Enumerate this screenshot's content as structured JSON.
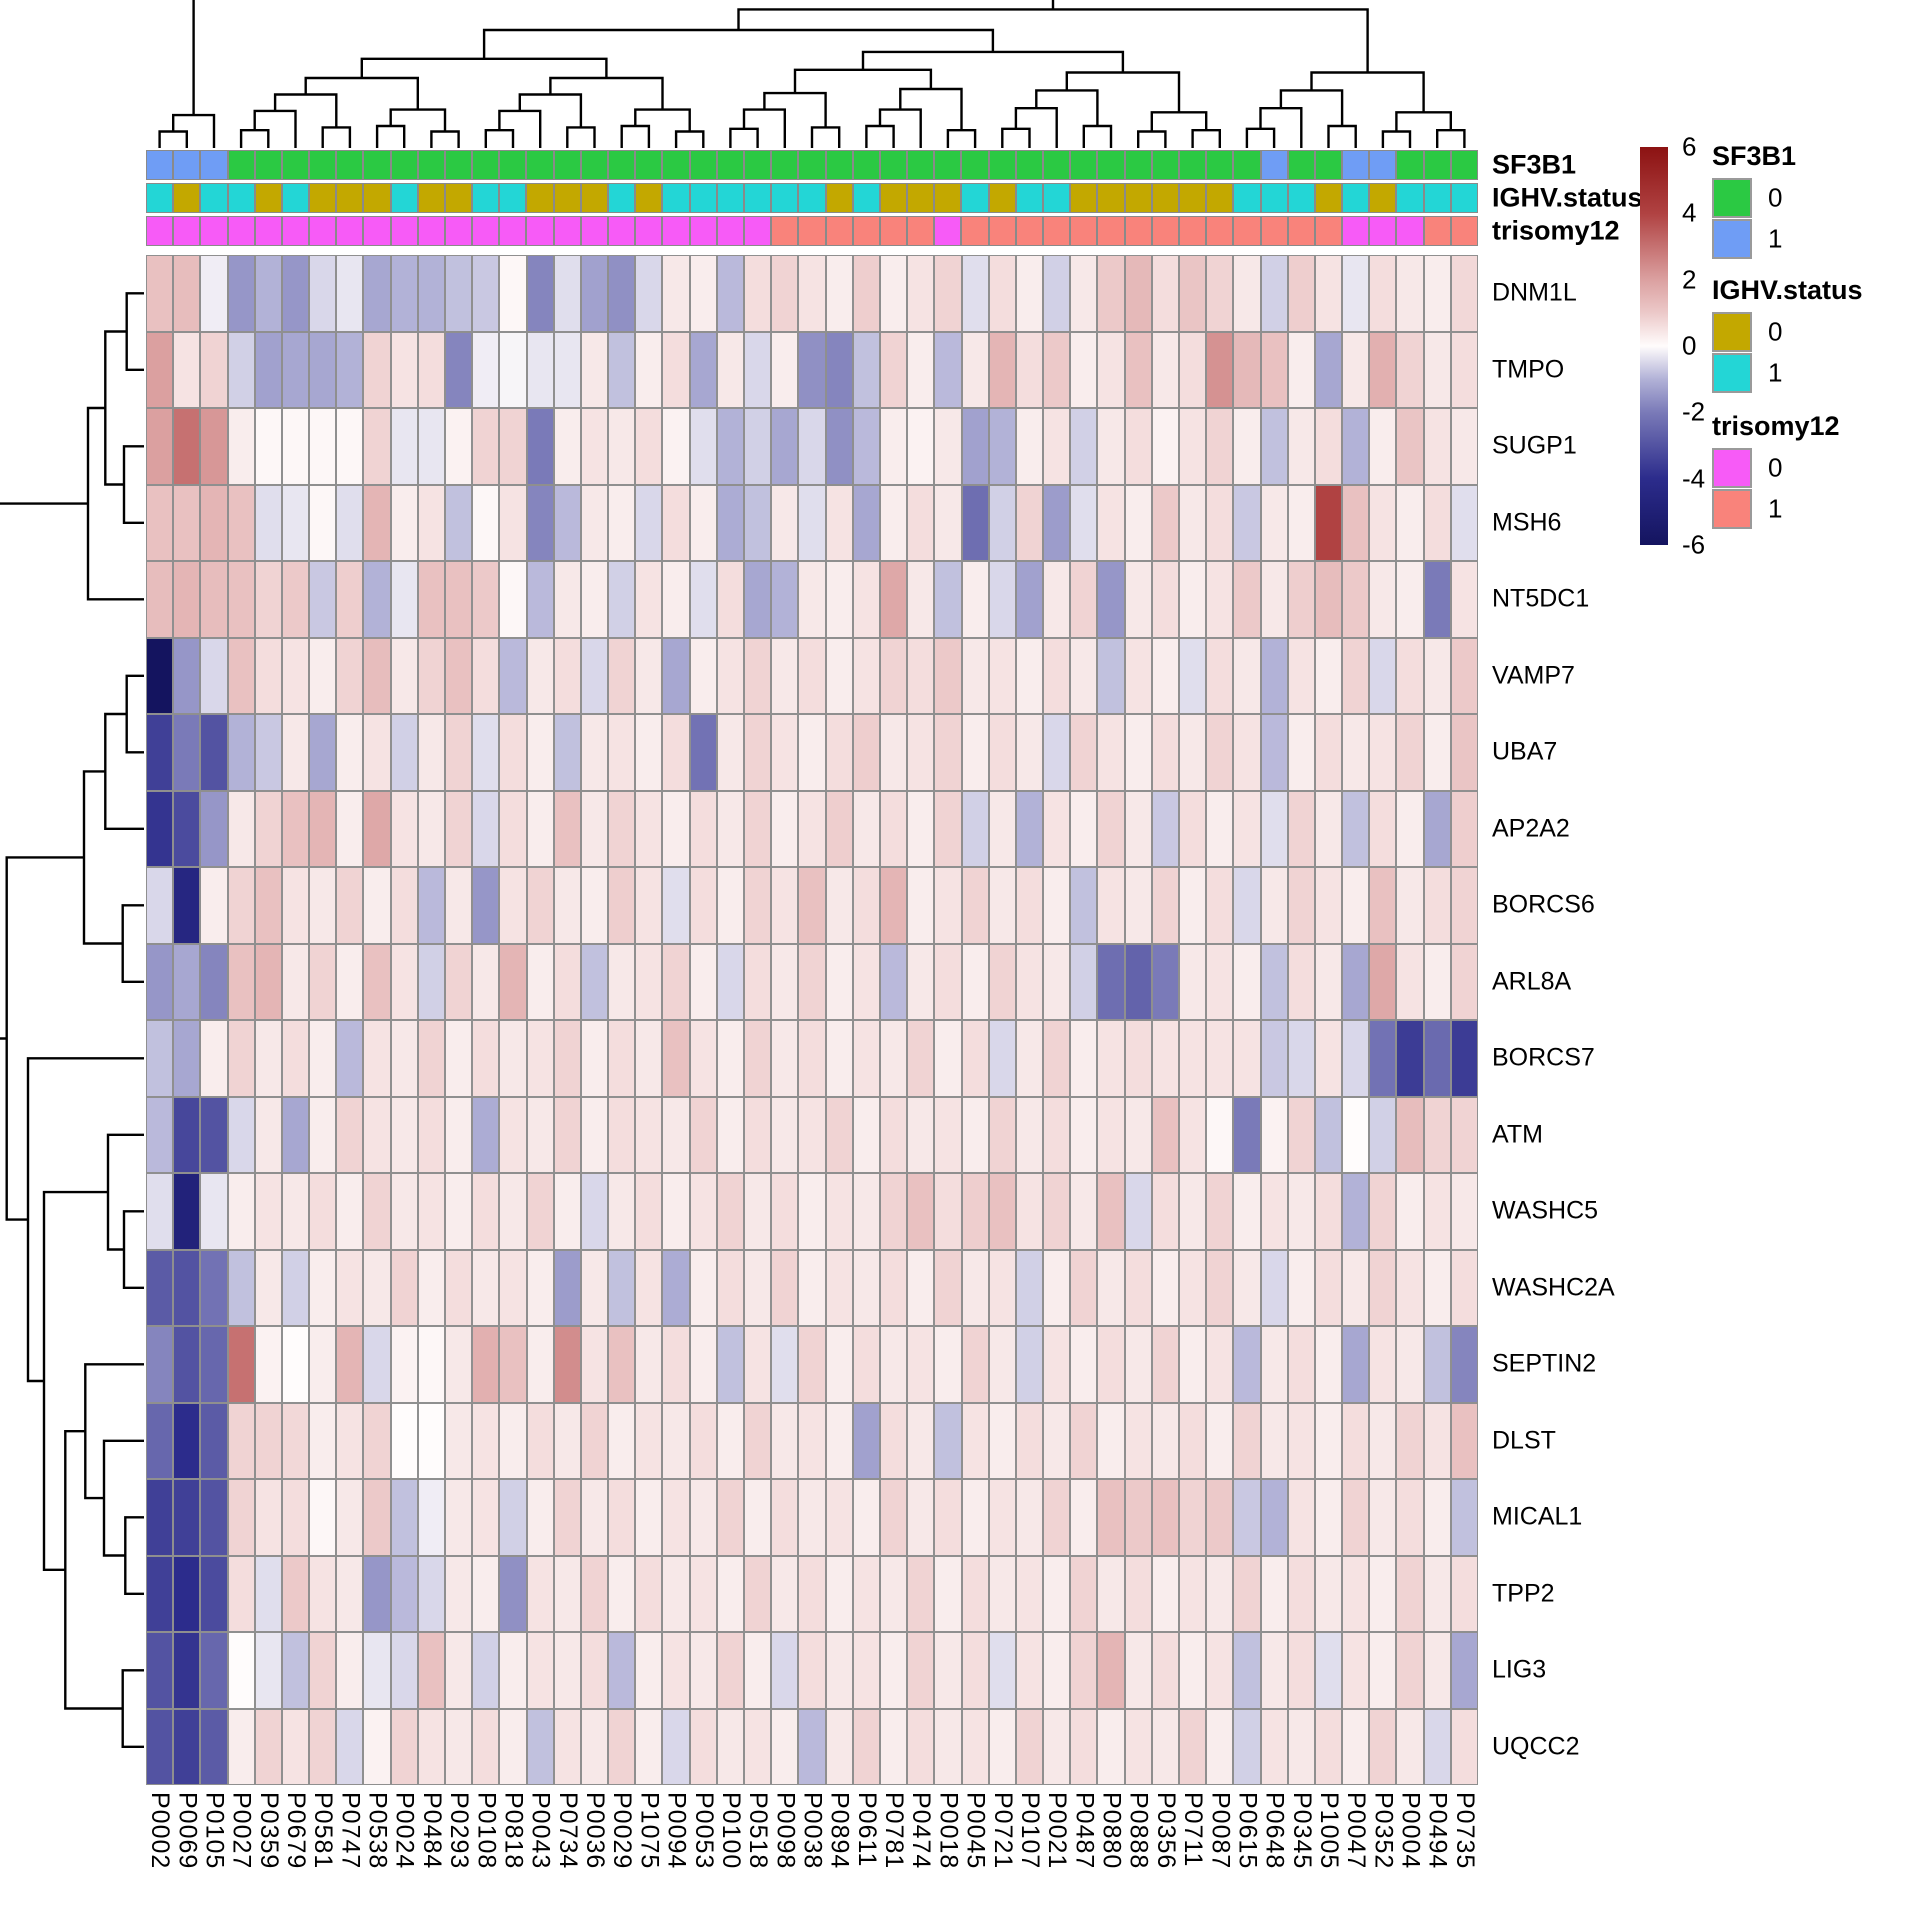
{
  "figure": {
    "kind": "clustered-heatmap",
    "background": "#ffffff"
  },
  "chart_data": {
    "type": "heatmap",
    "genes": [
      "DNM1L",
      "TMPO",
      "SUGP1",
      "MSH6",
      "NT5DC1",
      "VAMP7",
      "UBA7",
      "AP2A2",
      "BORCS6",
      "ARL8A",
      "BORCS7",
      "ATM",
      "WASHC5",
      "WASHC2A",
      "SEPTIN2",
      "DLST",
      "MICAL1",
      "TPP2",
      "LIG3",
      "UQCC2"
    ],
    "samples": [
      "P0002",
      "P0069",
      "P0105",
      "P0027",
      "P0359",
      "P0679",
      "P0581",
      "P0747",
      "P0538",
      "P0024",
      "P0484",
      "P0293",
      "P0108",
      "P0818",
      "P0043",
      "P0734",
      "P0036",
      "P0029",
      "P1075",
      "P0094",
      "P0053",
      "P0100",
      "P0518",
      "P0098",
      "P0038",
      "P0894",
      "P0611",
      "P0781",
      "P0474",
      "P0018",
      "P0045",
      "P0721",
      "P0107",
      "P0021",
      "P0487",
      "P0880",
      "P0888",
      "P0356",
      "P0711",
      "P0087",
      "P0615",
      "P0648",
      "P0345",
      "P1005",
      "P0047",
      "P0352",
      "P0004",
      "P0494",
      "P0735"
    ],
    "value_domain": [
      -6,
      6
    ],
    "colorbar_ticks": [
      6,
      4,
      2,
      0,
      -2,
      -4,
      -6
    ],
    "colorscale_stops": [
      {
        "v": -6,
        "color": "#14145f"
      },
      {
        "v": -4,
        "color": "#2c2c8c"
      },
      {
        "v": -2,
        "color": "#7a7ab8"
      },
      {
        "v": -1,
        "color": "#b2b2d7"
      },
      {
        "v": 0,
        "color": "#fffcfc"
      },
      {
        "v": 1,
        "color": "#ecc9c9"
      },
      {
        "v": 2,
        "color": "#dba0a0"
      },
      {
        "v": 4,
        "color": "#b04242"
      },
      {
        "v": 6,
        "color": "#8c1212"
      }
    ],
    "values": [
      [
        1.2,
        1.3,
        -0.2,
        -1.5,
        -1.0,
        -1.5,
        -0.5,
        -0.3,
        -1.2,
        -1.0,
        -1.0,
        -0.8,
        -0.7,
        0.1,
        -1.8,
        -0.4,
        -1.3,
        -1.6,
        -0.5,
        0.4,
        0.3,
        -0.9,
        0.6,
        0.8,
        0.5,
        0.3,
        0.9,
        0.3,
        0.5,
        0.8,
        -0.4,
        0.6,
        0.3,
        -0.6,
        0.4,
        1.0,
        1.4,
        0.6,
        1.1,
        0.8,
        0.4,
        -0.6,
        0.9,
        0.5,
        -0.3,
        0.6,
        0.4,
        0.3,
        0.7
      ],
      [
        2.0,
        0.5,
        0.8,
        -0.6,
        -1.3,
        -1.2,
        -1.2,
        -1.0,
        0.8,
        0.5,
        0.6,
        -1.8,
        -0.2,
        -0.1,
        -0.3,
        -0.3,
        0.4,
        -0.8,
        0.3,
        0.6,
        -1.2,
        0.4,
        -0.5,
        0.3,
        -1.6,
        -1.8,
        -0.8,
        0.8,
        0.3,
        -0.9,
        0.4,
        1.5,
        0.6,
        1.0,
        0.3,
        0.5,
        1.2,
        0.4,
        0.6,
        2.3,
        1.4,
        1.2,
        0.3,
        -1.2,
        0.4,
        1.6,
        0.8,
        0.4,
        0.6
      ],
      [
        2.0,
        3.0,
        2.2,
        0.3,
        0.1,
        0.1,
        0.1,
        0.1,
        0.8,
        -0.3,
        -0.3,
        0.2,
        0.8,
        0.8,
        -2.0,
        0.3,
        0.5,
        0.4,
        0.6,
        0.2,
        -0.4,
        -1.0,
        -0.6,
        -1.2,
        -0.5,
        -1.6,
        -0.9,
        0.3,
        0.2,
        0.4,
        -1.3,
        -1.0,
        0.3,
        0.5,
        -0.6,
        0.4,
        0.6,
        0.2,
        0.5,
        0.8,
        0.3,
        -0.8,
        0.4,
        0.6,
        -1.0,
        0.3,
        1.1,
        0.5,
        0.4
      ],
      [
        1.2,
        1.2,
        1.5,
        1.2,
        -0.4,
        -0.3,
        0.1,
        -0.4,
        1.5,
        0.3,
        0.5,
        -0.8,
        0.1,
        0.5,
        -1.8,
        -0.9,
        0.4,
        0.3,
        -0.5,
        0.6,
        0.3,
        -1.1,
        -0.8,
        0.4,
        -0.4,
        0.5,
        -1.2,
        0.3,
        0.6,
        0.4,
        -2.3,
        -0.6,
        0.8,
        -1.4,
        -0.4,
        0.5,
        0.3,
        1.0,
        0.4,
        0.6,
        -0.7,
        0.4,
        0.3,
        4.0,
        1.2,
        0.5,
        0.3,
        0.6,
        -0.4
      ],
      [
        1.3,
        1.5,
        1.3,
        1.2,
        0.8,
        1.0,
        -0.7,
        0.9,
        -1.0,
        -0.3,
        1.2,
        1.2,
        1.0,
        0.1,
        -0.9,
        0.4,
        0.3,
        -0.6,
        0.5,
        0.3,
        -0.4,
        0.6,
        -1.2,
        -1.0,
        0.4,
        0.3,
        0.5,
        1.8,
        0.4,
        -0.8,
        0.3,
        -0.5,
        -1.3,
        0.4,
        0.8,
        -1.5,
        0.4,
        0.6,
        0.3,
        0.5,
        1.0,
        0.4,
        0.9,
        1.3,
        1.0,
        0.4,
        0.3,
        -2.0,
        0.5
      ],
      [
        -6.0,
        -1.5,
        -0.5,
        1.2,
        0.6,
        0.5,
        0.3,
        0.8,
        1.3,
        0.4,
        0.8,
        1.2,
        0.6,
        -0.9,
        0.4,
        0.6,
        -0.5,
        0.8,
        0.4,
        -1.2,
        0.3,
        0.5,
        0.8,
        0.4,
        0.6,
        0.3,
        0.5,
        0.8,
        0.6,
        1.0,
        0.4,
        0.5,
        0.3,
        0.6,
        0.4,
        -0.8,
        0.5,
        0.3,
        -0.4,
        0.6,
        0.4,
        -1.0,
        0.5,
        0.3,
        0.8,
        -0.5,
        0.6,
        0.4,
        1.0
      ],
      [
        -3.5,
        -2.0,
        -3.0,
        -1.0,
        -0.7,
        0.4,
        -1.2,
        0.3,
        0.5,
        -0.6,
        0.4,
        0.8,
        -0.4,
        0.6,
        0.3,
        -0.8,
        0.4,
        0.5,
        0.3,
        0.6,
        -2.2,
        0.4,
        0.8,
        0.5,
        0.3,
        0.6,
        0.9,
        0.4,
        0.5,
        0.8,
        0.3,
        0.6,
        0.4,
        -0.5,
        0.8,
        0.5,
        0.3,
        0.6,
        0.4,
        0.8,
        0.5,
        -0.9,
        0.3,
        0.6,
        0.4,
        0.5,
        0.8,
        0.3,
        1.1
      ],
      [
        -3.8,
        -3.2,
        -1.5,
        0.4,
        0.8,
        1.2,
        1.5,
        0.3,
        1.8,
        0.5,
        0.4,
        0.8,
        -0.5,
        0.6,
        0.3,
        1.2,
        0.4,
        0.8,
        0.5,
        0.3,
        0.6,
        0.4,
        0.8,
        0.3,
        0.5,
        0.9,
        0.4,
        0.6,
        0.3,
        0.8,
        -0.6,
        0.4,
        -1.0,
        0.5,
        0.3,
        0.8,
        0.4,
        -0.7,
        0.6,
        0.3,
        0.5,
        -0.4,
        0.8,
        0.4,
        -0.8,
        0.6,
        0.3,
        -1.2,
        0.9
      ],
      [
        -0.5,
        -4.5,
        0.3,
        0.8,
        1.2,
        0.5,
        0.4,
        0.8,
        0.3,
        0.6,
        -0.9,
        0.4,
        -1.5,
        0.5,
        0.8,
        0.4,
        0.3,
        0.9,
        0.5,
        -0.4,
        0.6,
        0.3,
        0.8,
        0.5,
        1.2,
        0.4,
        0.6,
        1.5,
        0.3,
        0.5,
        0.8,
        0.4,
        0.6,
        0.3,
        -0.8,
        0.5,
        0.4,
        0.8,
        0.3,
        0.6,
        -0.5,
        0.4,
        0.8,
        0.5,
        0.3,
        1.2,
        0.4,
        0.6,
        0.8
      ],
      [
        -1.5,
        -1.2,
        -1.8,
        1.2,
        1.5,
        0.4,
        0.8,
        0.3,
        1.2,
        0.5,
        -0.6,
        0.8,
        0.4,
        1.5,
        0.3,
        0.6,
        -0.8,
        0.4,
        0.5,
        0.8,
        0.3,
        -0.5,
        0.6,
        0.4,
        0.8,
        0.3,
        0.5,
        -0.9,
        0.4,
        0.6,
        0.3,
        0.8,
        0.5,
        0.4,
        -0.6,
        -2.3,
        -2.6,
        -2.0,
        0.4,
        0.5,
        0.3,
        -0.8,
        0.6,
        0.4,
        -1.2,
        1.8,
        0.5,
        0.3,
        0.8
      ],
      [
        -0.8,
        -1.2,
        0.3,
        0.8,
        0.4,
        0.6,
        0.3,
        -0.9,
        0.5,
        0.4,
        0.8,
        0.3,
        0.6,
        0.4,
        0.5,
        0.8,
        0.3,
        0.6,
        0.4,
        1.2,
        0.5,
        0.3,
        0.8,
        0.4,
        0.6,
        0.3,
        0.5,
        0.4,
        0.8,
        0.3,
        0.6,
        -0.5,
        0.4,
        0.8,
        0.3,
        0.5,
        0.6,
        0.5,
        0.5,
        0.5,
        0.5,
        -0.7,
        -0.5,
        0.5,
        -0.5,
        -2.2,
        -3.6,
        -2.4,
        -3.6
      ],
      [
        -0.9,
        -3.3,
        -3.0,
        -0.5,
        0.4,
        -1.2,
        0.3,
        0.8,
        0.5,
        0.4,
        0.6,
        0.3,
        -1.1,
        0.5,
        0.4,
        0.8,
        0.3,
        0.6,
        0.5,
        0.4,
        0.8,
        0.3,
        0.6,
        0.4,
        0.5,
        0.8,
        0.3,
        0.6,
        0.4,
        0.5,
        0.3,
        0.8,
        0.4,
        0.6,
        0.3,
        0.5,
        0.4,
        1.2,
        0.5,
        0.1,
        -2.0,
        0.2,
        0.8,
        -0.8,
        0.0,
        -0.6,
        1.3,
        0.8,
        0.8
      ],
      [
        -0.4,
        -4.8,
        -0.3,
        0.3,
        0.5,
        0.4,
        0.6,
        0.3,
        0.8,
        0.4,
        0.5,
        0.3,
        0.6,
        0.4,
        0.8,
        0.3,
        -0.5,
        0.4,
        0.6,
        0.3,
        0.5,
        0.8,
        0.4,
        0.6,
        0.3,
        0.5,
        0.4,
        0.8,
        1.2,
        0.6,
        0.9,
        1.2,
        0.5,
        0.8,
        0.4,
        1.2,
        -0.5,
        0.6,
        0.4,
        0.8,
        0.3,
        0.5,
        0.4,
        0.6,
        -1.0,
        0.8,
        0.3,
        0.5,
        0.4
      ],
      [
        -2.8,
        -3.0,
        -2.2,
        -0.8,
        0.4,
        -0.6,
        0.3,
        0.5,
        0.4,
        0.8,
        0.3,
        0.6,
        0.4,
        0.5,
        0.3,
        -1.4,
        0.4,
        -0.8,
        0.5,
        -1.1,
        0.3,
        0.6,
        0.4,
        0.8,
        0.3,
        0.5,
        0.4,
        0.6,
        0.3,
        0.8,
        0.4,
        0.5,
        -0.6,
        0.3,
        0.8,
        0.4,
        0.6,
        0.3,
        0.5,
        0.8,
        0.4,
        -0.5,
        0.3,
        0.6,
        0.4,
        0.8,
        0.5,
        0.3,
        0.6
      ],
      [
        -1.8,
        -3.0,
        -2.5,
        3.0,
        0.2,
        0.0,
        0.3,
        1.5,
        -0.5,
        0.2,
        0.1,
        0.4,
        1.6,
        1.2,
        0.3,
        2.4,
        0.5,
        1.2,
        0.4,
        0.6,
        0.3,
        -0.8,
        0.5,
        -0.4,
        0.8,
        0.3,
        0.6,
        0.4,
        0.5,
        0.3,
        0.8,
        0.4,
        -0.6,
        0.5,
        0.3,
        0.6,
        0.4,
        0.8,
        0.3,
        0.5,
        -0.9,
        0.4,
        0.6,
        0.3,
        -1.2,
        0.5,
        0.4,
        -0.8,
        -1.8
      ],
      [
        -2.5,
        -4.0,
        -2.8,
        0.8,
        0.8,
        0.7,
        0.3,
        0.5,
        0.8,
        0.0,
        0.0,
        0.4,
        0.5,
        0.3,
        0.6,
        0.4,
        0.8,
        0.3,
        0.5,
        0.4,
        0.6,
        0.3,
        0.8,
        0.4,
        0.5,
        0.3,
        -1.3,
        0.6,
        0.4,
        -0.8,
        0.5,
        0.3,
        0.6,
        0.4,
        0.8,
        0.3,
        0.5,
        0.4,
        0.6,
        0.3,
        0.8,
        0.4,
        0.5,
        0.3,
        0.6,
        0.4,
        0.8,
        0.5,
        1.2
      ],
      [
        -3.5,
        -3.5,
        -3.0,
        0.8,
        0.5,
        0.6,
        0.1,
        0.4,
        1.0,
        -0.8,
        -0.2,
        0.4,
        0.5,
        -0.6,
        0.3,
        0.8,
        0.4,
        0.6,
        0.3,
        0.5,
        0.4,
        0.8,
        0.3,
        0.6,
        0.4,
        0.5,
        0.3,
        0.8,
        0.4,
        0.6,
        0.3,
        0.5,
        0.4,
        0.8,
        0.3,
        1.2,
        1.0,
        1.2,
        0.8,
        1.0,
        -0.7,
        -1.0,
        0.5,
        0.3,
        0.8,
        0.4,
        0.6,
        0.3,
        -0.8
      ],
      [
        -3.5,
        -4.0,
        -3.2,
        0.6,
        -0.4,
        1.0,
        0.5,
        0.4,
        -1.5,
        -0.9,
        -0.5,
        0.4,
        0.3,
        -1.6,
        0.5,
        0.4,
        0.8,
        0.3,
        0.6,
        0.4,
        0.5,
        0.3,
        0.8,
        0.4,
        0.6,
        0.3,
        0.5,
        0.4,
        0.8,
        0.3,
        0.6,
        0.4,
        0.5,
        0.3,
        0.8,
        0.4,
        0.6,
        0.3,
        0.5,
        0.4,
        0.8,
        0.3,
        0.6,
        0.4,
        0.5,
        0.3,
        0.8,
        0.4,
        0.6
      ],
      [
        -3.0,
        -3.8,
        -2.5,
        0.0,
        -0.3,
        -0.8,
        0.8,
        0.3,
        -0.3,
        -0.5,
        1.2,
        0.4,
        -0.6,
        0.3,
        0.5,
        0.4,
        0.6,
        -0.9,
        0.3,
        0.5,
        0.4,
        0.8,
        0.3,
        -0.5,
        0.6,
        0.4,
        0.5,
        0.3,
        0.8,
        0.4,
        0.6,
        -0.4,
        0.5,
        0.3,
        0.8,
        1.5,
        0.4,
        0.6,
        0.3,
        0.5,
        -0.8,
        0.4,
        0.6,
        -0.4,
        0.5,
        0.3,
        0.8,
        0.4,
        -1.2
      ],
      [
        -3.0,
        -3.5,
        -2.8,
        0.3,
        0.8,
        0.5,
        0.8,
        -0.5,
        0.2,
        0.8,
        0.5,
        0.4,
        0.6,
        0.3,
        -0.8,
        0.5,
        0.4,
        0.8,
        0.3,
        -0.5,
        0.6,
        0.4,
        0.5,
        0.3,
        -0.9,
        0.4,
        0.8,
        0.3,
        0.6,
        0.4,
        0.5,
        0.3,
        0.8,
        0.4,
        0.6,
        0.3,
        0.5,
        0.4,
        0.8,
        0.3,
        -0.6,
        0.5,
        0.4,
        0.6,
        0.3,
        0.8,
        0.4,
        -0.5,
        0.6
      ]
    ],
    "annotations": [
      {
        "name": "SF3B1",
        "values": [
          1,
          1,
          1,
          0,
          0,
          0,
          0,
          0,
          0,
          0,
          0,
          0,
          0,
          0,
          0,
          0,
          0,
          0,
          0,
          0,
          0,
          0,
          0,
          0,
          0,
          0,
          0,
          0,
          0,
          0,
          0,
          0,
          0,
          0,
          0,
          0,
          0,
          0,
          0,
          0,
          0,
          1,
          0,
          0,
          1,
          1,
          0,
          0,
          0
        ],
        "levels": [
          {
            "label": "0",
            "color": "#2bc943"
          },
          {
            "label": "1",
            "color": "#6f9df5"
          }
        ]
      },
      {
        "name": "IGHV.status",
        "values": [
          1,
          0,
          1,
          1,
          0,
          1,
          0,
          0,
          0,
          1,
          0,
          0,
          1,
          1,
          0,
          0,
          0,
          1,
          0,
          1,
          1,
          1,
          1,
          1,
          1,
          0,
          1,
          0,
          0,
          0,
          1,
          0,
          1,
          1,
          0,
          0,
          0,
          0,
          0,
          0,
          1,
          1,
          1,
          0,
          1,
          0,
          1,
          1,
          1
        ],
        "levels": [
          {
            "label": "0",
            "color": "#c3a800"
          },
          {
            "label": "1",
            "color": "#23d6d6"
          }
        ]
      },
      {
        "name": "trisomy12",
        "values": [
          0,
          0,
          0,
          0,
          0,
          0,
          0,
          0,
          0,
          0,
          0,
          0,
          0,
          0,
          0,
          0,
          0,
          0,
          0,
          0,
          0,
          0,
          0,
          1,
          1,
          1,
          1,
          1,
          1,
          0,
          1,
          1,
          1,
          1,
          1,
          1,
          1,
          1,
          1,
          1,
          1,
          1,
          1,
          1,
          0,
          0,
          0,
          1,
          1
        ],
        "levels": [
          {
            "label": "0",
            "color": "#f75bf7"
          },
          {
            "label": "1",
            "color": "#f9837b"
          }
        ]
      }
    ],
    "row_dendrogram": [
      [
        [
          [
            0,
            1
          ],
          [
            2,
            3
          ]
        ],
        4
      ],
      [
        [
          [
            [
              5,
              6
            ],
            7
          ],
          [
            8,
            9
          ]
        ],
        [
          10,
          [
            [
              11,
              [
                12,
                13
              ]
            ],
            [
              [
                14,
                [
                  15,
                  [
                    16,
                    17
                  ]
                ]
              ],
              [
                18,
                19
              ]
            ]
          ]
        ]
      ]
    ],
    "col_dendrogram_segments": [
      [
        0,
        3
      ],
      [
        3,
        21
      ],
      [
        21,
        40
      ],
      [
        40,
        49
      ]
    ],
    "grid_line_color": "#8f8f8f",
    "legend_position": "right"
  }
}
